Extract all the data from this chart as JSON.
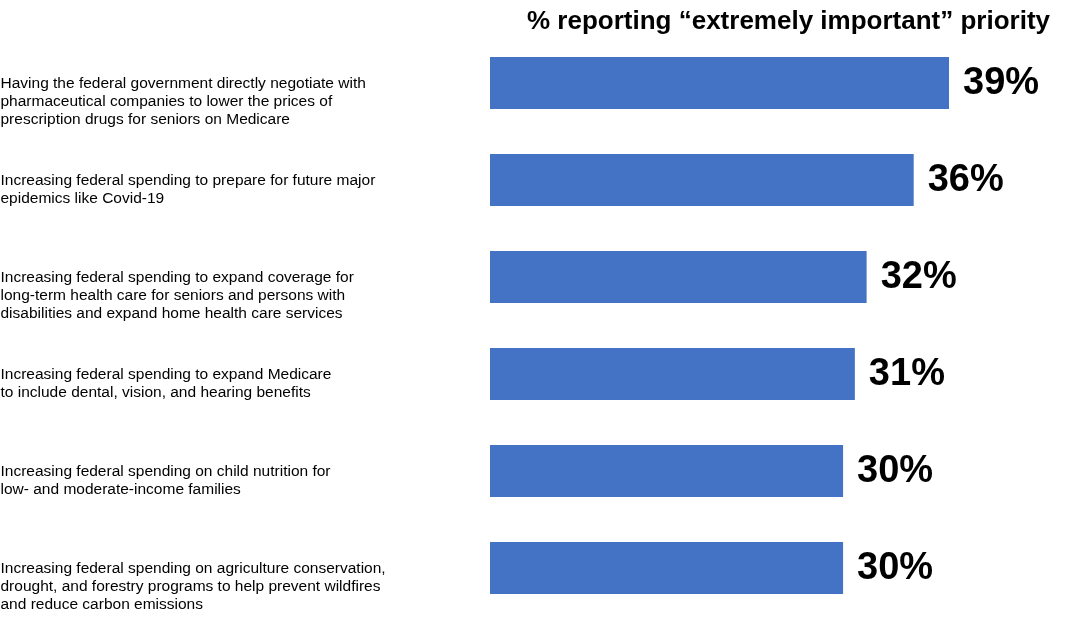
{
  "chart_data": {
    "type": "bar",
    "orientation": "horizontal",
    "title": "% reporting “extremely important” priority",
    "categories": [
      "Having the federal government directly negotiate with\npharmaceutical companies to lower the prices of\nprescription drugs for seniors on Medicare",
      "Increasing federal spending to prepare for future major\nepidemics like Covid-19",
      "Increasing federal spending to expand coverage for\nlong-term health care for seniors and persons with\ndisabilities and expand home health care services",
      "Increasing federal spending to expand Medicare\nto include dental, vision, and hearing benefits",
      "Increasing federal spending on child nutrition for\nlow- and moderate-income families",
      "Increasing federal spending on agriculture conservation,\ndrought, and forestry programs to help prevent wildfires\nand reduce carbon emissions"
    ],
    "values": [
      39,
      36,
      32,
      31,
      30,
      30
    ],
    "value_labels": [
      "39%",
      "36%",
      "32%",
      "31%",
      "30%",
      "30%"
    ],
    "color": "#4472c4"
  }
}
